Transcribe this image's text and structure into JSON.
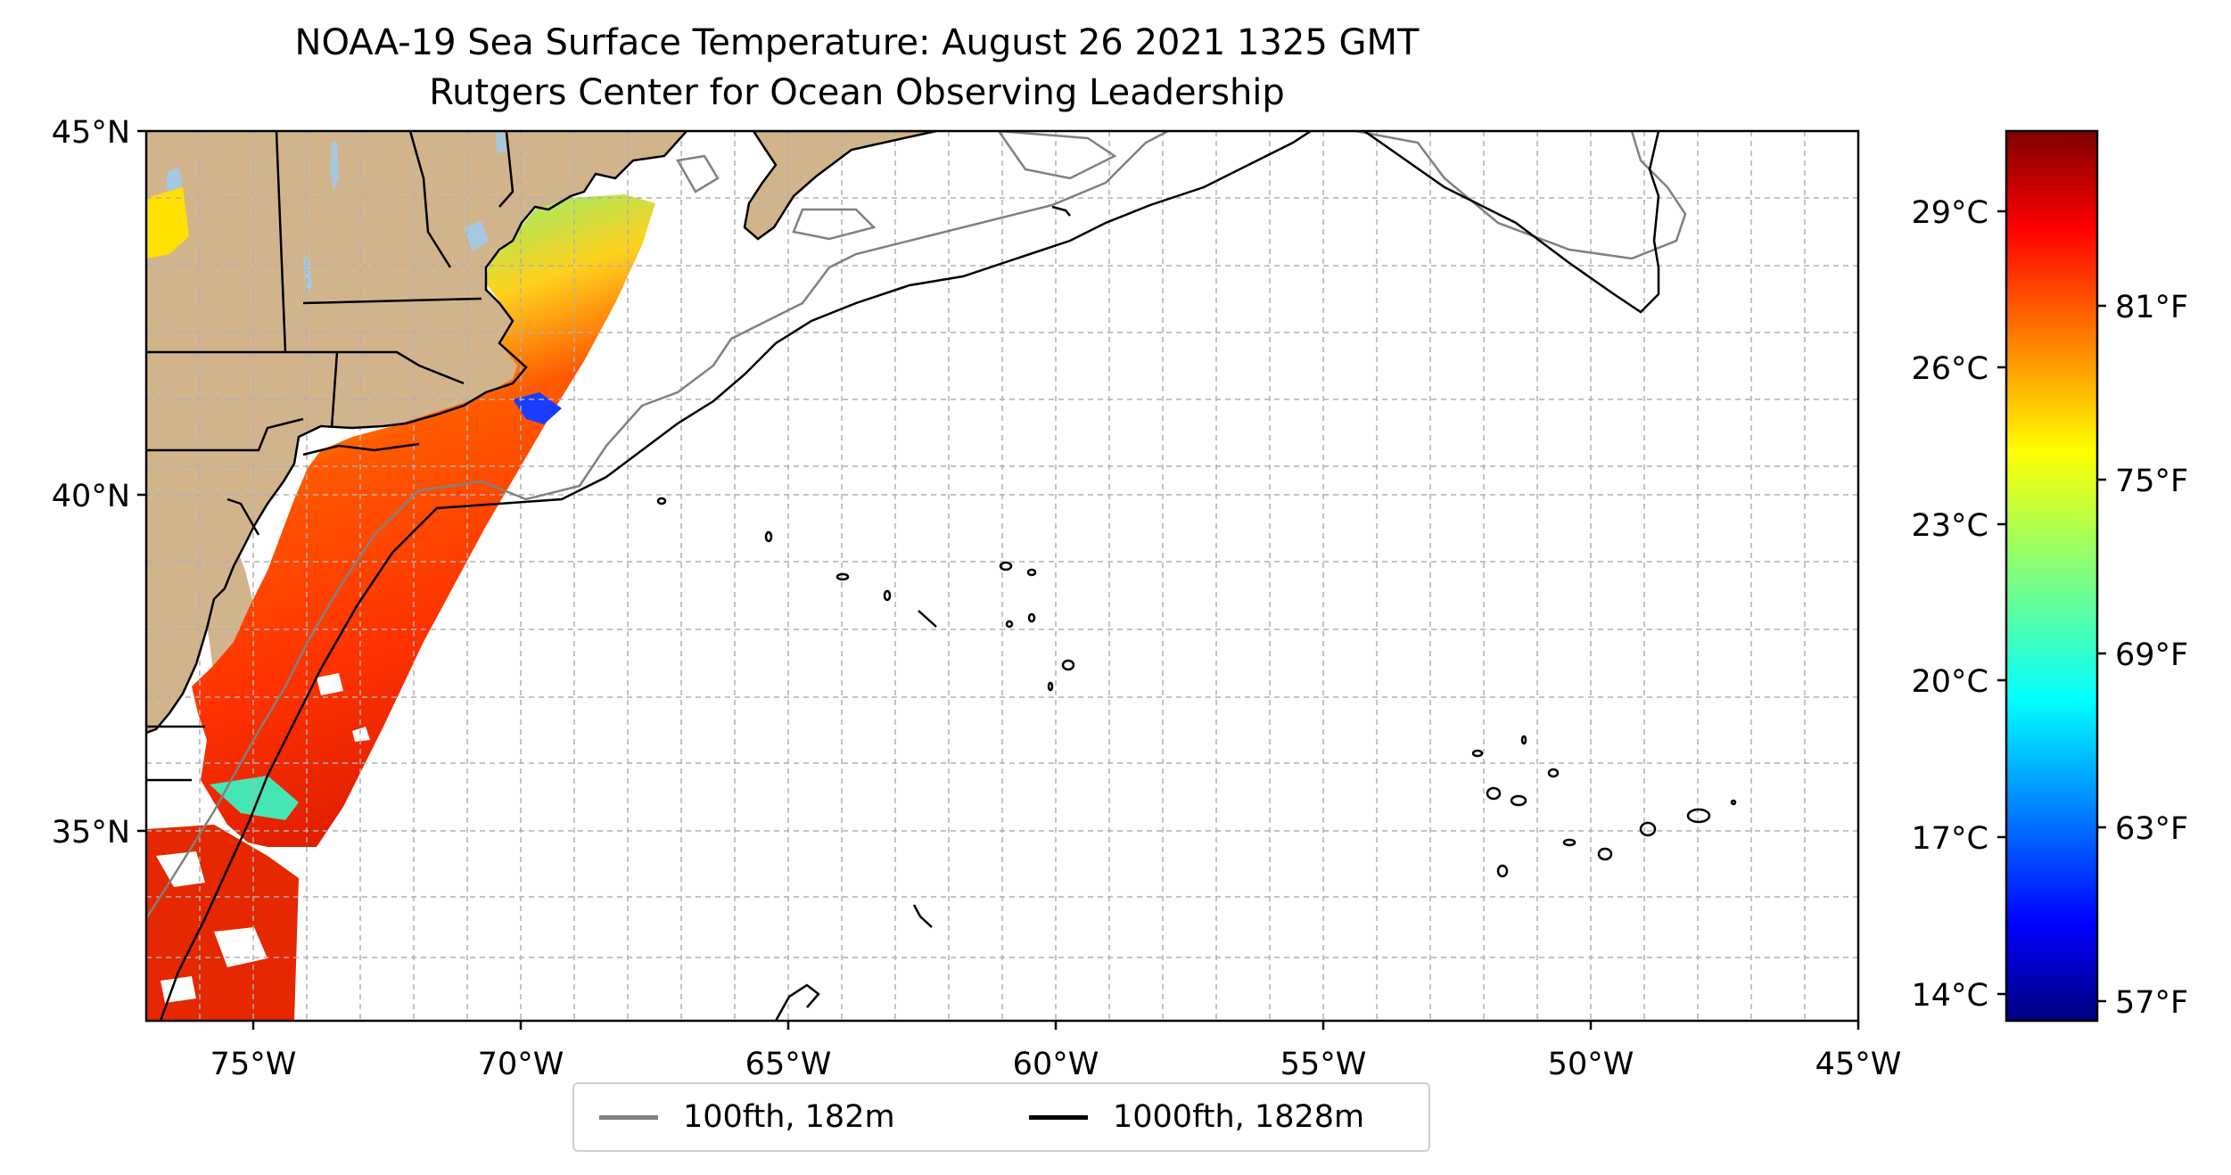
{
  "title": {
    "line1": "NOAA-19 Sea Surface Temperature: August 26 2021 1325 GMT",
    "line2": "Rutgers Center for Ocean Observing Leadership"
  },
  "map": {
    "lon_range": [
      -77,
      -45
    ],
    "lat_range": [
      32.3,
      45
    ],
    "lon_ticks": [
      "75°W",
      "70°W",
      "65°W",
      "60°W",
      "55°W",
      "50°W",
      "45°W"
    ],
    "lat_ticks": [
      "45°N",
      "40°N",
      "35°N"
    ],
    "gridlines": true,
    "land_color": "#d2b48c",
    "lake_color": "#a6c8e0"
  },
  "colorbar": {
    "colormap": "jet",
    "celsius_ticks": [
      "29°C",
      "26°C",
      "23°C",
      "20°C",
      "17°C",
      "14°C"
    ],
    "fahrenheit_ticks": [
      "81°F",
      "75°F",
      "69°F",
      "63°F",
      "57°F"
    ]
  },
  "legend": {
    "items": [
      {
        "label": "100fth, 182m",
        "color": "#808080"
      },
      {
        "label": "1000fth, 1828m",
        "color": "#000000"
      }
    ]
  }
}
